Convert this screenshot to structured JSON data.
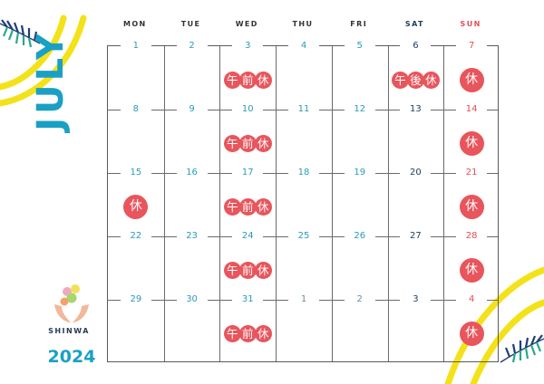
{
  "month": "JULY",
  "year": "2024",
  "brand": {
    "name": "SHINWA"
  },
  "weekdays": [
    "MON",
    "TUE",
    "WED",
    "THU",
    "FRI",
    "SAT",
    "SUN"
  ],
  "colors": {
    "weekday_header": "#333333",
    "sun_header": "#e04e57",
    "sat_header": "#1f3f63",
    "weekday_number": "#2a9bb8",
    "sat_number": "#1f3f63",
    "sun_number": "#e04e57",
    "holiday_badge": "#e8555c",
    "accent_yellow": "#f3e21a",
    "title_blue": "#1aa0c4"
  },
  "weeks": [
    [
      {
        "num": "1",
        "current": true
      },
      {
        "num": "2",
        "current": true
      },
      {
        "num": "3",
        "current": true,
        "tag": "午前休"
      },
      {
        "num": "4",
        "current": true
      },
      {
        "num": "5",
        "current": true
      },
      {
        "num": "6",
        "current": true,
        "tag": "午後休"
      },
      {
        "num": "7",
        "current": true,
        "tag": "休"
      }
    ],
    [
      {
        "num": "8",
        "current": true
      },
      {
        "num": "9",
        "current": true
      },
      {
        "num": "10",
        "current": true,
        "tag": "午前休"
      },
      {
        "num": "11",
        "current": true
      },
      {
        "num": "12",
        "current": true
      },
      {
        "num": "13",
        "current": true
      },
      {
        "num": "14",
        "current": true,
        "tag": "休"
      }
    ],
    [
      {
        "num": "15",
        "current": true,
        "tag": "休"
      },
      {
        "num": "16",
        "current": true
      },
      {
        "num": "17",
        "current": true,
        "tag": "午前休"
      },
      {
        "num": "18",
        "current": true
      },
      {
        "num": "19",
        "current": true
      },
      {
        "num": "20",
        "current": true
      },
      {
        "num": "21",
        "current": true,
        "tag": "休"
      }
    ],
    [
      {
        "num": "22",
        "current": true
      },
      {
        "num": "23",
        "current": true
      },
      {
        "num": "24",
        "current": true,
        "tag": "午前休"
      },
      {
        "num": "25",
        "current": true
      },
      {
        "num": "26",
        "current": true
      },
      {
        "num": "27",
        "current": true
      },
      {
        "num": "28",
        "current": true,
        "tag": "休"
      }
    ],
    [
      {
        "num": "29",
        "current": true
      },
      {
        "num": "30",
        "current": true
      },
      {
        "num": "31",
        "current": true,
        "tag": "午前休"
      },
      {
        "num": "1",
        "current": false
      },
      {
        "num": "2",
        "current": false
      },
      {
        "num": "3",
        "current": false
      },
      {
        "num": "4",
        "current": false,
        "tag": "休"
      }
    ]
  ]
}
